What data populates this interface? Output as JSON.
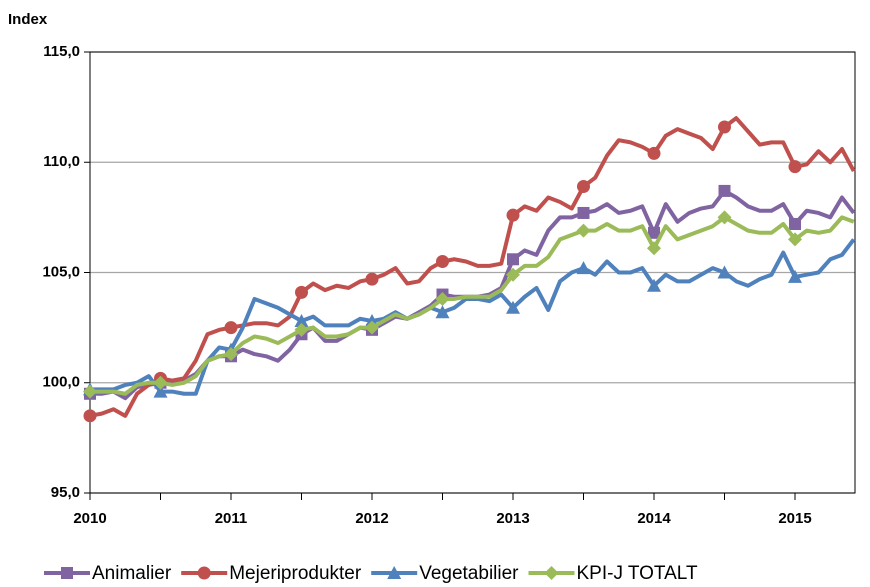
{
  "chart_data": {
    "type": "line",
    "ylabel": "Index",
    "categories": [
      "2010",
      null,
      null,
      null,
      null,
      null,
      null,
      null,
      null,
      null,
      null,
      null,
      "2011",
      null,
      null,
      null,
      null,
      null,
      null,
      null,
      null,
      null,
      null,
      null,
      "2012",
      null,
      null,
      null,
      null,
      null,
      null,
      null,
      null,
      null,
      null,
      null,
      "2013",
      null,
      null,
      null,
      null,
      null,
      null,
      null,
      null,
      null,
      null,
      null,
      "2014",
      null,
      null,
      null,
      null,
      null,
      null,
      null,
      null,
      null,
      null,
      null,
      "2015",
      null,
      null,
      null,
      null,
      null
    ],
    "ylim": [
      95,
      115
    ],
    "yticks": [
      {
        "value": 95,
        "label": "95,0"
      },
      {
        "value": 100,
        "label": "100,0"
      },
      {
        "value": 105,
        "label": "105,0"
      },
      {
        "value": 110,
        "label": "110,0"
      },
      {
        "value": 115,
        "label": "115,0"
      }
    ],
    "grid": true,
    "legend": "bottom",
    "series": [
      {
        "name": "Animalier",
        "color": "#8064a2",
        "marker": "square",
        "values": [
          99.5,
          99.5,
          99.6,
          99.3,
          99.8,
          99.9,
          100.0,
          100.0,
          100.1,
          100.4,
          101.0,
          101.2,
          101.2,
          101.5,
          101.3,
          101.2,
          101.0,
          101.5,
          102.2,
          102.5,
          101.9,
          101.9,
          102.2,
          102.5,
          102.4,
          102.7,
          103.0,
          102.9,
          103.2,
          103.5,
          104.0,
          103.9,
          103.9,
          103.9,
          104.0,
          104.3,
          105.6,
          106.0,
          105.8,
          106.9,
          107.5,
          107.5,
          107.7,
          107.8,
          108.1,
          107.7,
          107.8,
          108.0,
          106.8,
          108.1,
          107.3,
          107.7,
          107.9,
          108.0,
          108.7,
          108.4,
          108.0,
          107.8,
          107.8,
          108.1,
          107.2,
          107.8,
          107.7,
          107.5,
          108.4,
          107.7
        ]
      },
      {
        "name": "Mejeriprodukter",
        "color": "#c0504d",
        "marker": "circle",
        "values": [
          98.5,
          98.6,
          98.8,
          98.5,
          99.5,
          99.9,
          100.2,
          100.1,
          100.2,
          101.0,
          102.2,
          102.4,
          102.5,
          102.6,
          102.7,
          102.7,
          102.6,
          103.0,
          104.1,
          104.5,
          104.2,
          104.4,
          104.3,
          104.6,
          104.7,
          104.9,
          105.2,
          104.5,
          104.6,
          105.2,
          105.5,
          105.6,
          105.5,
          105.3,
          105.3,
          105.4,
          107.6,
          108.0,
          107.8,
          108.4,
          108.2,
          107.9,
          108.9,
          109.3,
          110.3,
          111.0,
          110.9,
          110.7,
          110.4,
          111.2,
          111.5,
          111.3,
          111.1,
          110.6,
          111.6,
          112.0,
          111.4,
          110.8,
          110.9,
          110.9,
          109.8,
          109.9,
          110.5,
          110.0,
          110.6,
          109.6
        ]
      },
      {
        "name": "Vegetabilier",
        "color": "#4f81bd",
        "marker": "triangle",
        "values": [
          99.7,
          99.7,
          99.7,
          99.9,
          100.0,
          100.3,
          99.6,
          99.6,
          99.5,
          99.5,
          101.0,
          101.6,
          101.5,
          102.5,
          103.8,
          103.6,
          103.4,
          103.1,
          102.8,
          103.0,
          102.6,
          102.6,
          102.6,
          102.9,
          102.8,
          102.9,
          103.2,
          102.9,
          103.1,
          103.4,
          103.2,
          103.4,
          103.8,
          103.8,
          103.7,
          104.0,
          103.4,
          103.9,
          104.3,
          103.3,
          104.6,
          105.0,
          105.2,
          104.9,
          105.5,
          105.0,
          105.0,
          105.2,
          104.4,
          104.9,
          104.6,
          104.6,
          104.9,
          105.2,
          105.0,
          104.6,
          104.4,
          104.7,
          104.9,
          105.9,
          104.8,
          104.9,
          105.0,
          105.6,
          105.8,
          106.5
        ]
      },
      {
        "name": "KPI-J TOTALT",
        "color": "#9bbb59",
        "marker": "diamond",
        "values": [
          99.6,
          99.6,
          99.6,
          99.5,
          99.9,
          100.0,
          100.0,
          99.9,
          100.0,
          100.3,
          101.0,
          101.2,
          101.3,
          101.8,
          102.1,
          102.0,
          101.8,
          102.1,
          102.4,
          102.5,
          102.1,
          102.1,
          102.2,
          102.5,
          102.5,
          102.8,
          103.1,
          102.9,
          103.1,
          103.4,
          103.8,
          103.8,
          103.9,
          103.9,
          103.9,
          104.2,
          104.9,
          105.3,
          105.3,
          105.7,
          106.5,
          106.7,
          106.9,
          106.9,
          107.2,
          106.9,
          106.9,
          107.1,
          106.1,
          107.1,
          106.5,
          106.7,
          106.9,
          107.1,
          107.5,
          107.2,
          106.9,
          106.8,
          106.8,
          107.2,
          106.5,
          106.9,
          106.8,
          106.9,
          107.5,
          107.3
        ]
      }
    ]
  }
}
